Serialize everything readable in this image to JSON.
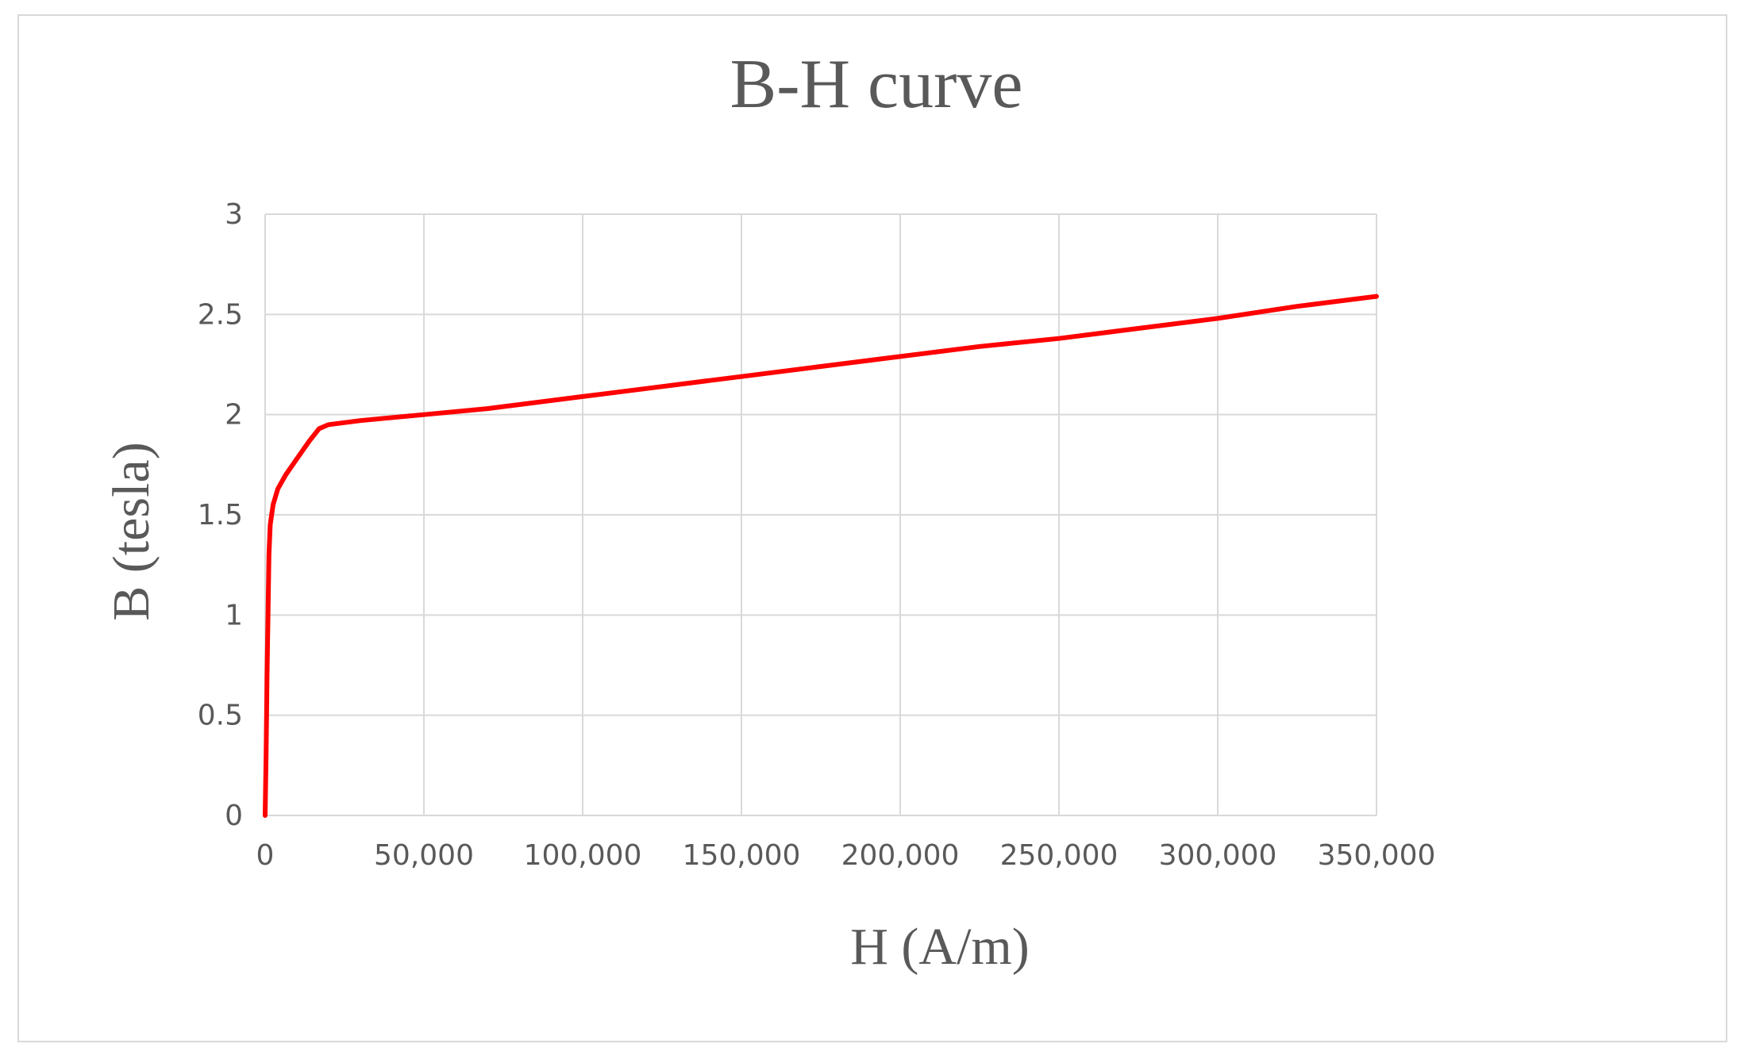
{
  "chart_data": {
    "type": "line",
    "title": "B-H curve",
    "xlabel": "H (A/m)",
    "ylabel": "B (tesla)",
    "xlim": [
      0,
      350000
    ],
    "ylim": [
      0,
      3
    ],
    "x_ticks": [
      0,
      50000,
      100000,
      150000,
      200000,
      250000,
      300000,
      350000
    ],
    "x_tick_labels": [
      "0",
      "50,000",
      "100,000",
      "150,000",
      "200,000",
      "250,000",
      "300,000",
      "350,000"
    ],
    "y_ticks": [
      0,
      0.5,
      1,
      1.5,
      2,
      2.5,
      3
    ],
    "y_tick_labels": [
      "0",
      "0.5",
      "1",
      "1.5",
      "2",
      "2.5",
      "3"
    ],
    "grid": true,
    "legend": "none",
    "series": [
      {
        "color": "#ff0000",
        "x": [
          0,
          300,
          600,
          900,
          1200,
          1600,
          2500,
          4000,
          6500,
          10000,
          14000,
          17000,
          20000,
          30000,
          50000,
          70000,
          100000,
          120000,
          140000,
          150000,
          175000,
          200000,
          225000,
          250000,
          275000,
          300000,
          325000,
          350000
        ],
        "y": [
          0,
          0.3,
          0.7,
          1.0,
          1.3,
          1.45,
          1.55,
          1.63,
          1.7,
          1.78,
          1.87,
          1.93,
          1.95,
          1.97,
          2.0,
          2.03,
          2.09,
          2.13,
          2.17,
          2.19,
          2.24,
          2.29,
          2.34,
          2.38,
          2.43,
          2.48,
          2.54,
          2.59
        ]
      }
    ]
  }
}
